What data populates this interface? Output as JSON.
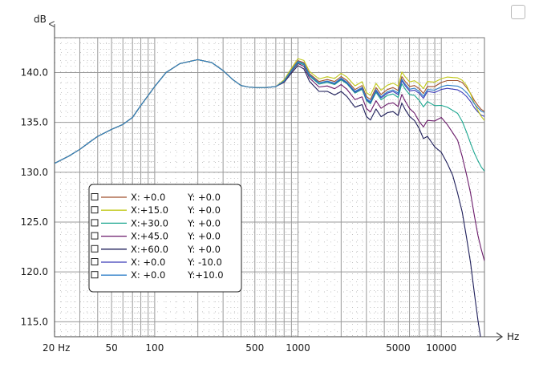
{
  "chart_data": {
    "type": "line",
    "ylabel": "dB",
    "xlabel": "Hz",
    "x_scale": "log",
    "xlim": [
      20,
      20000
    ],
    "ylim": [
      113.5,
      143.5
    ],
    "x_ticks": [
      {
        "value": 20,
        "label": "20 Hz"
      },
      {
        "value": 50,
        "label": "50"
      },
      {
        "value": 100,
        "label": "100"
      },
      {
        "value": 500,
        "label": "500"
      },
      {
        "value": 1000,
        "label": "1000"
      },
      {
        "value": 5000,
        "label": "5000"
      },
      {
        "value": 10000,
        "label": "10000"
      }
    ],
    "y_ticks": [
      {
        "value": 140,
        "label": "140.0"
      },
      {
        "value": 135,
        "label": "135.0"
      },
      {
        "value": 130,
        "label": "130.0"
      },
      {
        "value": 125,
        "label": "125.0"
      },
      {
        "value": 120,
        "label": "120.0"
      },
      {
        "value": 115,
        "label": "115.0"
      }
    ],
    "grid": true,
    "legend_position": "lower-left",
    "base_curve": [
      [
        20,
        130.9
      ],
      [
        25,
        131.6
      ],
      [
        30,
        132.3
      ],
      [
        35,
        133.0
      ],
      [
        40,
        133.6
      ],
      [
        50,
        134.3
      ],
      [
        60,
        134.8
      ],
      [
        70,
        135.5
      ],
      [
        80,
        136.7
      ],
      [
        100,
        138.6
      ],
      [
        120,
        140.0
      ],
      [
        150,
        140.9
      ],
      [
        200,
        141.3
      ],
      [
        250,
        141.0
      ],
      [
        300,
        140.2
      ],
      [
        350,
        139.3
      ],
      [
        400,
        138.7
      ],
      [
        450,
        138.55
      ],
      [
        500,
        138.5
      ],
      [
        600,
        138.5
      ],
      [
        700,
        138.6
      ],
      [
        800,
        139.2
      ],
      [
        900,
        140.3
      ],
      [
        1000,
        141.2
      ],
      [
        1100,
        141.0
      ],
      [
        1200,
        139.9
      ],
      [
        1400,
        139.1
      ],
      [
        1600,
        139.3
      ],
      [
        1800,
        139.1
      ],
      [
        2000,
        139.6
      ],
      [
        2200,
        139.2
      ],
      [
        2500,
        138.3
      ],
      [
        2800,
        138.7
      ],
      [
        3000,
        137.6
      ],
      [
        3200,
        137.3
      ],
      [
        3500,
        138.5
      ],
      [
        3800,
        137.8
      ],
      [
        4200,
        138.3
      ],
      [
        4600,
        138.5
      ],
      [
        5000,
        138.2
      ],
      [
        5300,
        139.6
      ],
      [
        5600,
        139.1
      ],
      [
        6000,
        138.6
      ],
      [
        6500,
        138.7
      ],
      [
        7000,
        138.4
      ],
      [
        7500,
        137.9
      ],
      [
        8000,
        138.6
      ],
      [
        9000,
        138.6
      ],
      [
        10000,
        139.0
      ],
      [
        11000,
        139.2
      ],
      [
        12000,
        139.2
      ],
      [
        13000,
        139.2
      ],
      [
        14000,
        139.0
      ],
      [
        15000,
        138.5
      ],
      [
        16000,
        137.9
      ],
      [
        17000,
        137.2
      ],
      [
        18000,
        136.7
      ],
      [
        19000,
        136.3
      ],
      [
        20000,
        136.1
      ]
    ],
    "series": [
      {
        "name": "X:  +0.0     Y:  +0.0",
        "color": "#a0522d",
        "hf_offset": [
          [
            1000,
            0
          ],
          [
            3000,
            0
          ],
          [
            10000,
            0
          ],
          [
            20000,
            0
          ]
        ]
      },
      {
        "name": "X:+15.0     Y:  +0.0",
        "color": "#c0c818",
        "hf_offset": [
          [
            1000,
            0.2
          ],
          [
            3000,
            0.4
          ],
          [
            8000,
            0.5
          ],
          [
            15000,
            0.2
          ],
          [
            20000,
            -0.9
          ]
        ]
      },
      {
        "name": "X:+30.0     Y:  +0.0",
        "color": "#1aa68f",
        "hf_offset": [
          [
            1000,
            -0.2
          ],
          [
            3000,
            -0.4
          ],
          [
            6000,
            -0.8
          ],
          [
            8000,
            -1.5
          ],
          [
            10000,
            -2.3
          ],
          [
            13000,
            -3.3
          ],
          [
            16000,
            -5.0
          ],
          [
            20000,
            -6.0
          ]
        ]
      },
      {
        "name": "X:+45.0     Y:  +0.0",
        "color": "#6a1a6a",
        "hf_offset": [
          [
            1000,
            -0.3
          ],
          [
            2000,
            -0.8
          ],
          [
            3000,
            -1.2
          ],
          [
            5000,
            -1.6
          ],
          [
            6000,
            -2.2
          ],
          [
            7000,
            -3.3
          ],
          [
            8000,
            -3.4
          ],
          [
            10000,
            -3.5
          ],
          [
            13000,
            -6.0
          ],
          [
            16000,
            -10.0
          ],
          [
            18000,
            -13.0
          ],
          [
            20000,
            -15.0
          ]
        ]
      },
      {
        "name": "X:+60.0     Y:  +0.0",
        "color": "#1e1e5a",
        "hf_offset": [
          [
            1000,
            -0.5
          ],
          [
            2000,
            -1.5
          ],
          [
            3000,
            -2.0
          ],
          [
            5000,
            -2.5
          ],
          [
            6000,
            -3.0
          ],
          [
            7000,
            -4.0
          ],
          [
            8000,
            -5.0
          ],
          [
            10000,
            -7.0
          ],
          [
            12000,
            -9.5
          ],
          [
            14000,
            -13.0
          ],
          [
            16000,
            -17.0
          ],
          [
            18000,
            -21.5
          ],
          [
            20000,
            -25.0
          ]
        ]
      },
      {
        "name": "X:  +0.0     Y: -10.0",
        "color": "#3b3bb8",
        "hf_offset": [
          [
            1000,
            -0.1
          ],
          [
            3000,
            -0.3
          ],
          [
            8000,
            -0.5
          ],
          [
            14000,
            -1.0
          ],
          [
            20000,
            -0.5
          ]
        ]
      },
      {
        "name": "X:  +0.0     Y:+10.0",
        "color": "#2f7fc8",
        "hf_offset": [
          [
            1000,
            -0.1
          ],
          [
            3000,
            -0.2
          ],
          [
            8000,
            -0.3
          ],
          [
            14000,
            -0.6
          ],
          [
            20000,
            -0.1
          ]
        ]
      }
    ]
  }
}
